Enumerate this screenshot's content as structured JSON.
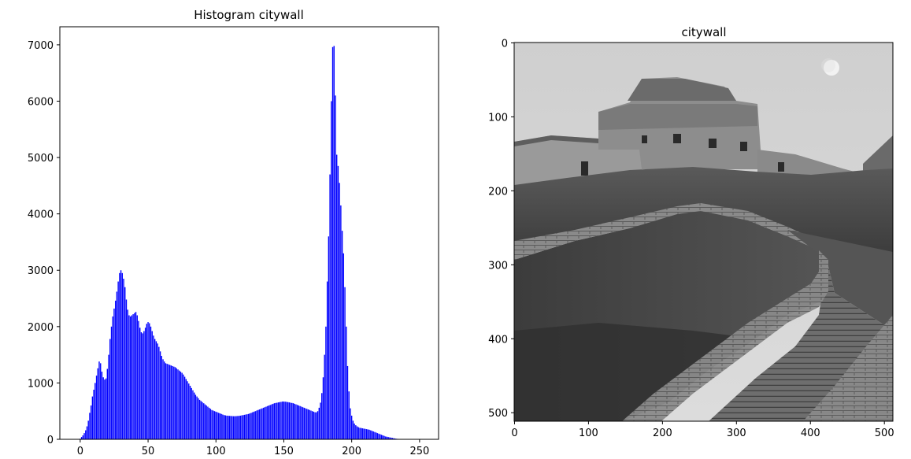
{
  "chart_data": [
    {
      "type": "bar",
      "title": "Histogram  citywall",
      "xlabel": "",
      "ylabel": "",
      "xlim": [
        -15,
        264
      ],
      "ylim": [
        0,
        7320
      ],
      "xticks": [
        0,
        50,
        100,
        150,
        200,
        250
      ],
      "yticks": [
        0,
        1000,
        2000,
        3000,
        4000,
        5000,
        6000,
        7000
      ],
      "bar_width": 0.8,
      "color": "#0000ff",
      "x_start": 0,
      "values": [
        10,
        40,
        70,
        110,
        160,
        230,
        330,
        470,
        600,
        760,
        880,
        1000,
        1130,
        1260,
        1380,
        1350,
        1200,
        1100,
        1060,
        1080,
        1250,
        1500,
        1780,
        2000,
        2180,
        2320,
        2460,
        2620,
        2800,
        2950,
        3000,
        2950,
        2850,
        2700,
        2480,
        2300,
        2200,
        2180,
        2200,
        2220,
        2240,
        2260,
        2200,
        2100,
        1980,
        1900,
        1880,
        1920,
        1980,
        2050,
        2080,
        2060,
        2000,
        1920,
        1840,
        1780,
        1740,
        1700,
        1640,
        1560,
        1480,
        1420,
        1380,
        1350,
        1340,
        1330,
        1320,
        1310,
        1300,
        1290,
        1280,
        1260,
        1240,
        1220,
        1200,
        1180,
        1150,
        1110,
        1070,
        1030,
        990,
        950,
        910,
        870,
        830,
        790,
        760,
        730,
        700,
        680,
        660,
        640,
        620,
        600,
        580,
        560,
        540,
        520,
        510,
        500,
        490,
        480,
        470,
        460,
        450,
        440,
        430,
        425,
        420,
        418,
        416,
        414,
        412,
        410,
        410,
        412,
        414,
        416,
        420,
        425,
        430,
        435,
        440,
        445,
        450,
        460,
        470,
        480,
        490,
        500,
        510,
        520,
        530,
        540,
        550,
        560,
        570,
        580,
        590,
        600,
        610,
        620,
        630,
        640,
        645,
        650,
        655,
        660,
        665,
        670,
        670,
        668,
        665,
        660,
        655,
        650,
        645,
        640,
        630,
        620,
        610,
        600,
        590,
        580,
        570,
        560,
        550,
        540,
        530,
        520,
        510,
        500,
        490,
        480,
        480,
        500,
        560,
        650,
        820,
        1100,
        1500,
        2000,
        2800,
        3600,
        4700,
        6000,
        6960,
        6980,
        6100,
        5050,
        4850,
        4550,
        4150,
        3700,
        3300,
        2700,
        2000,
        1300,
        850,
        550,
        420,
        330,
        280,
        250,
        230,
        215,
        205,
        200,
        195,
        190,
        185,
        180,
        175,
        170,
        160,
        150,
        140,
        130,
        120,
        110,
        100,
        90,
        80,
        70,
        60,
        50,
        45,
        40,
        35,
        30,
        25,
        20,
        15,
        10,
        8,
        6,
        4,
        2,
        1,
        0,
        0,
        0,
        0,
        0,
        0,
        0,
        0,
        0,
        0,
        0,
        0,
        0,
        0,
        0
      ]
    },
    {
      "type": "image",
      "title": "citywall",
      "xlim": [
        -0.5,
        511.5
      ],
      "ylim": [
        511.5,
        -0.5
      ],
      "xticks": [
        0,
        100,
        200,
        300,
        400,
        500
      ],
      "yticks": [
        0,
        100,
        200,
        300,
        400,
        500
      ]
    }
  ]
}
